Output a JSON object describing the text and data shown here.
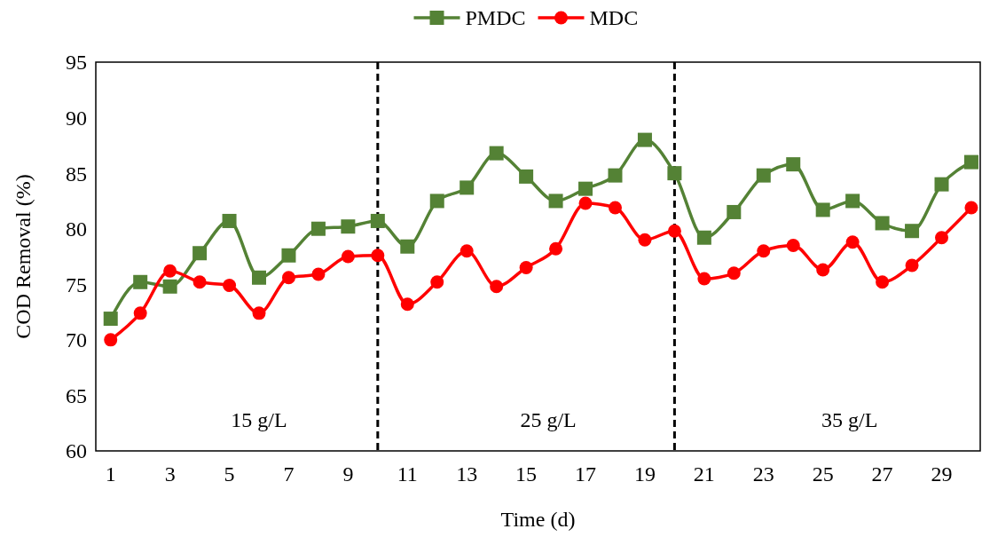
{
  "chart_data": {
    "type": "line",
    "xlabel": "Time (d)",
    "ylabel": "COD Removal (%)",
    "x": [
      1,
      2,
      3,
      4,
      5,
      6,
      7,
      8,
      9,
      10,
      11,
      12,
      13,
      14,
      15,
      16,
      17,
      18,
      19,
      20,
      21,
      22,
      23,
      24,
      25,
      26,
      27,
      28,
      29,
      30
    ],
    "xlim": [
      0.5,
      30.3
    ],
    "xticks": [
      1,
      3,
      5,
      7,
      9,
      11,
      13,
      15,
      17,
      19,
      21,
      23,
      25,
      27,
      29
    ],
    "ylim": [
      60,
      95
    ],
    "yticks": [
      60,
      65,
      70,
      75,
      80,
      85,
      90,
      95
    ],
    "series": [
      {
        "name": "PMDC",
        "color": "#548235",
        "marker": "square",
        "values": [
          71.9,
          75.2,
          74.8,
          77.8,
          80.7,
          75.6,
          77.6,
          80.0,
          80.2,
          80.7,
          78.4,
          82.5,
          83.7,
          86.8,
          84.7,
          82.5,
          83.6,
          84.8,
          88.0,
          85.0,
          79.2,
          81.5,
          84.8,
          85.8,
          81.7,
          82.5,
          80.5,
          79.8,
          84.0,
          86.0
        ]
      },
      {
        "name": "MDC",
        "color": "#ff0000",
        "marker": "circle",
        "values": [
          70.0,
          72.4,
          76.2,
          75.2,
          74.9,
          72.4,
          75.6,
          75.9,
          77.5,
          77.6,
          73.2,
          75.2,
          78.0,
          74.8,
          76.5,
          78.2,
          82.3,
          81.9,
          79.0,
          79.8,
          75.5,
          76.0,
          78.0,
          78.5,
          76.3,
          78.8,
          75.2,
          76.7,
          79.2,
          81.9
        ]
      }
    ],
    "ref_lines": [
      {
        "axis": "x",
        "value": 10,
        "color": "#000000",
        "line_style": "dashed"
      },
      {
        "axis": "x",
        "value": 20,
        "color": "#000000",
        "line_style": "dashed"
      }
    ],
    "annotations": [
      "15 g/L",
      "25 g/L",
      "35 g/L"
    ],
    "legend": "top",
    "grid": false,
    "line_style": "solid"
  }
}
